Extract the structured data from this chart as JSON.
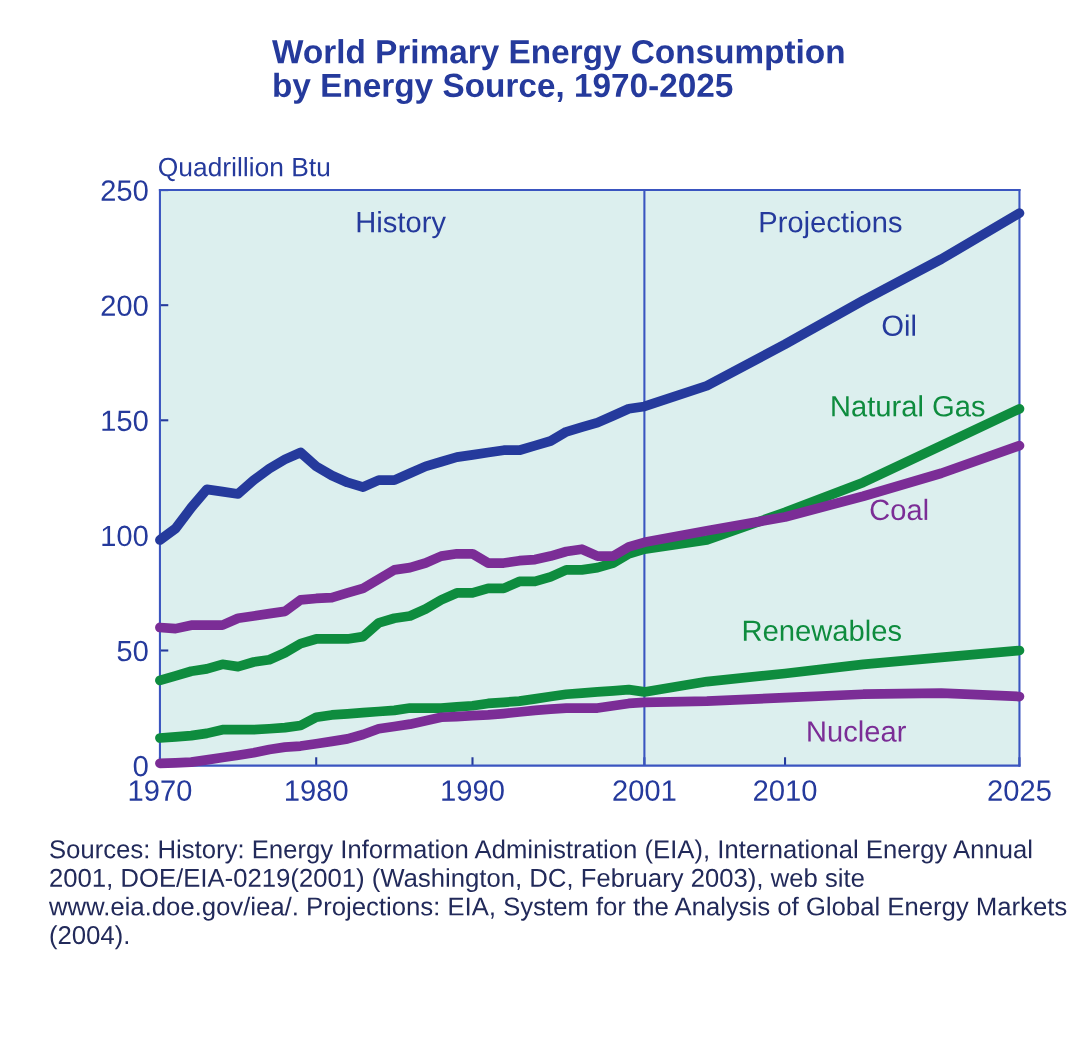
{
  "chart_data": {
    "type": "line",
    "title": "World Primary Energy Consumption\nby Energy Source, 1970-2025",
    "ylabel": "Quadrillion Btu",
    "x": [
      1970,
      1971,
      1972,
      1973,
      1974,
      1975,
      1976,
      1977,
      1978,
      1979,
      1980,
      1981,
      1982,
      1983,
      1984,
      1985,
      1986,
      1987,
      1988,
      1989,
      1990,
      1991,
      1992,
      1993,
      1994,
      1995,
      1996,
      1997,
      1998,
      1999,
      2000,
      2001,
      2005,
      2010,
      2015,
      2020,
      2025
    ],
    "series": [
      {
        "name": "Oil",
        "color": "#253a9c",
        "values": [
          98,
          103,
          112,
          120,
          119,
          118,
          124,
          129,
          133,
          136,
          130,
          126,
          123,
          121,
          124,
          124,
          127,
          130,
          132,
          134,
          135,
          136,
          137,
          137,
          139,
          141,
          145,
          147,
          149,
          152,
          155,
          156,
          165,
          183,
          202,
          220,
          240
        ]
      },
      {
        "name": "Natural Gas",
        "color": "#0e8c3e",
        "values": [
          37,
          39,
          41,
          42,
          44,
          43,
          45,
          46,
          49,
          53,
          55,
          55,
          55,
          56,
          62,
          64,
          65,
          68,
          72,
          75,
          75,
          77,
          77,
          80,
          80,
          82,
          85,
          85,
          86,
          88,
          92,
          94,
          98,
          110,
          123,
          139,
          155
        ]
      },
      {
        "name": "Coal",
        "color": "#7b2d96",
        "values": [
          60,
          59.5,
          61,
          61,
          61,
          64,
          65,
          66,
          67,
          72,
          72.6,
          73,
          75,
          77,
          81,
          85,
          86,
          88,
          91,
          92,
          92,
          88,
          88,
          89,
          89.5,
          91,
          93,
          94,
          91,
          91,
          95,
          97,
          102,
          108,
          117,
          127,
          139
        ]
      },
      {
        "name": "Renewables",
        "color": "#0e8c3e",
        "values": [
          12,
          12.5,
          13,
          14,
          15.6,
          15.6,
          15.6,
          16,
          16.5,
          17.4,
          21,
          22,
          22.5,
          23,
          23.5,
          24,
          25,
          25,
          25,
          25.5,
          26,
          27,
          27.5,
          28,
          29,
          30,
          31,
          31.5,
          32,
          32.5,
          33,
          32,
          36.5,
          40,
          44,
          47,
          50
        ]
      },
      {
        "name": "Nuclear",
        "color": "#7b2d96",
        "values": [
          1,
          1.2,
          1.5,
          2.5,
          3.5,
          4.5,
          5.6,
          7,
          8,
          8.5,
          9.5,
          10.5,
          11.6,
          13.5,
          16,
          17,
          18,
          19.5,
          21,
          21.3,
          21.7,
          22,
          22.6,
          23.3,
          24,
          24.5,
          25,
          25,
          25,
          26,
          27,
          27.5,
          28,
          29.5,
          31,
          31.5,
          30
        ]
      }
    ],
    "xlim": [
      1970,
      2025
    ],
    "ylim": [
      0,
      250
    ],
    "xticks": [
      1970,
      1980,
      1990,
      2001,
      2010,
      2025
    ],
    "yticks": [
      0,
      50,
      100,
      150,
      200,
      250
    ],
    "ref_lines": [
      {
        "axis": "x",
        "value": 2001,
        "color": "#3a55c0"
      }
    ],
    "grid": false,
    "annotations": [
      "History",
      "Projections",
      "Sources: History: Energy Information Administration (EIA), International Energy Annual 2001, DOE/EIA-0219(2001) (Washington, DC, February 2003), web site www.eia.doe.gov/iea/. Projections: EIA, System for the Analysis of Global Energy Markets (2004)."
    ]
  }
}
